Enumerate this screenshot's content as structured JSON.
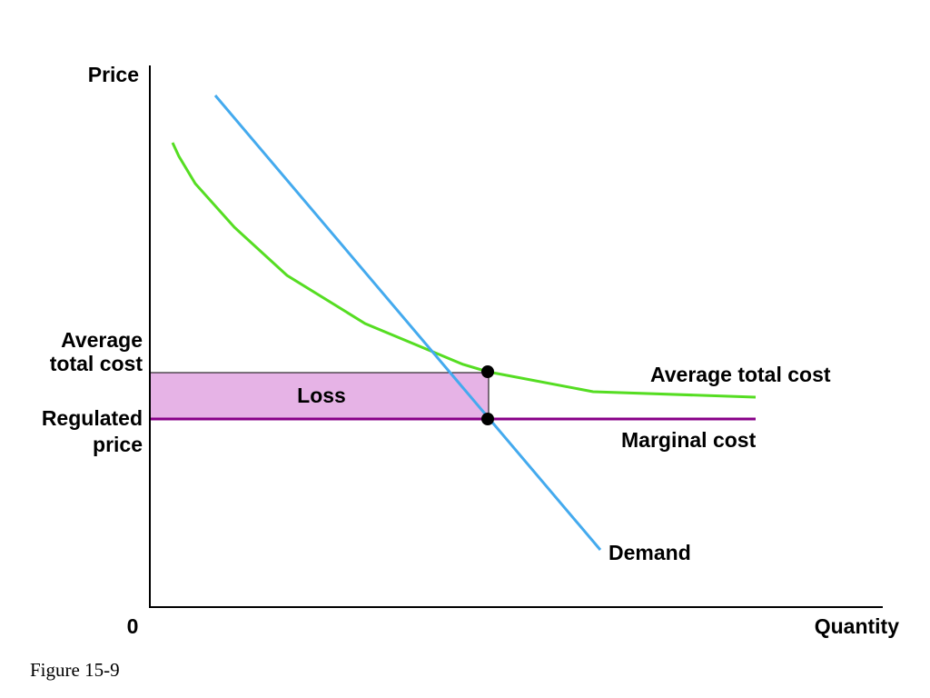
{
  "diagram": {
    "axis_labels": {
      "y": "Price",
      "x": "Quantity",
      "origin": "0"
    },
    "y_axis_levels": {
      "atc_line1": "Average",
      "atc_line2": "total cost",
      "price_line1": "Regulated",
      "price_line2": "price"
    },
    "region_label": "Loss",
    "curve_labels": {
      "atc": "Average total cost",
      "mc": "Marginal cost",
      "demand": "Demand"
    },
    "colors": {
      "atc": "#55dd22",
      "demand": "#44aaee",
      "mc": "#880088",
      "loss_fill": "#e6b3e6",
      "axes": "#000000",
      "points": "#000000"
    }
  },
  "caption": "Figure 15-9"
}
